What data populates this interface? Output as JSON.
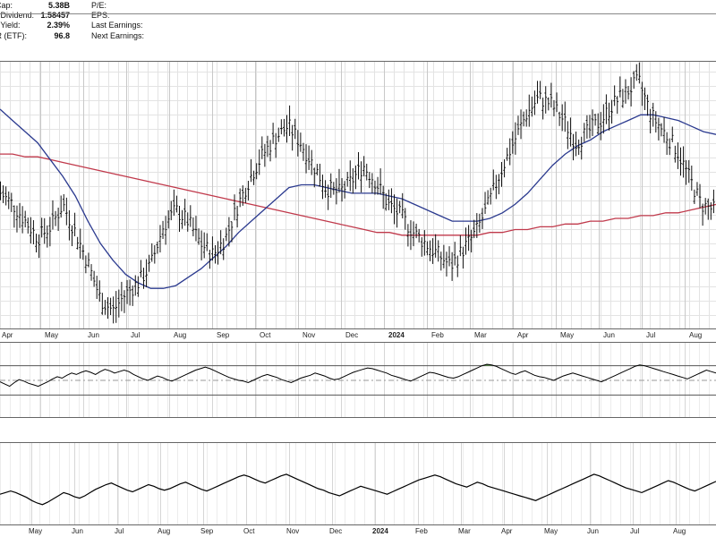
{
  "info_panel": {
    "rows": [
      {
        "label": "t Cap:",
        "value": "5.38B"
      },
      {
        "label": "rd Dividend:",
        "value": "1.58457"
      },
      {
        "label": "rd Yield:",
        "value": "2.39%"
      },
      {
        "label": "TR (ETF):",
        "value": "96.8"
      }
    ],
    "right_labels": [
      "P/E:",
      "EPS:",
      "Last Earnings:",
      "Next Earnings:"
    ]
  },
  "chart_data": [
    {
      "type": "line",
      "panel": "price",
      "x_tick_labels": [
        "Apr",
        "May",
        "Jun",
        "Jul",
        "Aug",
        "Sep",
        "Oct",
        "Nov",
        "Dec",
        "2024",
        "Feb",
        "Mar",
        "Apr",
        "May",
        "Jun",
        "Jul",
        "Aug"
      ],
      "year_label": "2024",
      "series": [
        {
          "key": "price",
          "style": "ohlc-bars",
          "color": "#000000",
          "values": [
            200,
            196,
            190,
            184,
            188,
            196,
            186,
            175,
            162,
            158,
            164,
            168,
            174,
            188,
            194,
            190,
            182,
            178,
            184,
            196,
            206,
            214,
            220,
            224,
            218,
            210,
            202,
            200,
            204,
            210,
            204,
            196,
            192,
            186,
            182,
            178,
            174,
            180,
            186,
            196,
            208,
            218,
            228,
            234,
            232,
            226,
            218,
            222,
            226,
            232,
            236,
            240,
            228,
            222,
            216,
            206,
            196,
            194
          ]
        },
        {
          "key": "ma-short",
          "style": "line",
          "color": "#2b3a8f",
          "values": [
            230,
            226,
            222,
            218,
            212,
            206,
            199,
            190,
            182,
            176,
            171,
            168,
            166,
            166,
            167,
            170,
            173,
            177,
            181,
            186,
            190,
            194,
            198,
            202,
            203,
            203,
            202,
            201,
            200,
            200,
            200,
            199,
            198,
            196,
            194,
            192,
            190,
            190,
            190,
            191,
            193,
            196,
            200,
            205,
            210,
            214,
            217,
            219,
            222,
            224,
            226,
            228,
            228,
            227,
            226,
            224,
            222,
            221
          ]
        },
        {
          "key": "ma-long",
          "style": "line",
          "color": "#c0394b",
          "values": [
            214,
            214,
            213,
            213,
            212,
            211,
            210,
            209,
            208,
            207,
            206,
            205,
            204,
            203,
            202,
            201,
            200,
            199,
            198,
            197,
            196,
            195,
            194,
            193,
            192,
            191,
            190,
            189,
            188,
            187,
            186,
            186,
            185,
            185,
            185,
            185,
            185,
            185,
            185,
            186,
            186,
            187,
            187,
            188,
            188,
            189,
            189,
            190,
            190,
            191,
            191,
            192,
            192,
            193,
            193,
            194,
            195,
            196
          ]
        }
      ],
      "grid": true
    },
    {
      "type": "line",
      "panel": "oscillator-1",
      "series": [
        {
          "key": "osc1",
          "color": "#000000",
          "values": [
            48,
            45,
            42,
            47,
            51,
            49,
            46,
            44,
            42,
            45,
            48,
            52,
            55,
            53,
            57,
            60,
            58,
            61,
            63,
            61,
            58,
            62,
            65,
            63,
            60,
            62,
            64,
            62,
            58,
            55,
            52,
            50,
            53,
            56,
            54,
            51,
            49,
            52,
            55,
            58,
            61,
            64,
            66,
            68,
            66,
            63,
            60,
            57,
            54,
            52,
            50,
            49,
            47,
            50,
            53,
            56,
            58,
            56,
            54,
            51,
            49,
            47,
            50,
            53,
            55,
            57,
            60,
            58,
            56,
            53,
            51,
            52,
            55,
            58,
            61,
            63,
            65,
            67,
            66,
            64,
            62,
            60,
            57,
            55,
            53,
            51,
            49,
            52,
            55,
            58,
            61,
            60,
            58,
            56,
            54,
            53,
            55,
            58,
            61,
            64,
            67,
            70,
            72,
            71,
            69,
            66,
            63,
            60,
            58,
            61,
            63,
            60,
            57,
            55,
            54,
            52,
            50,
            53,
            56,
            58,
            60,
            58,
            56,
            54,
            52,
            50,
            48,
            51,
            54,
            57,
            60,
            63,
            66,
            69,
            71,
            70,
            68,
            66,
            64,
            62,
            60,
            58,
            56,
            54,
            52,
            55,
            58,
            61,
            64,
            62,
            60
          ]
        }
      ],
      "levels": [
        70,
        30
      ],
      "midline": 50,
      "ylim": [
        0,
        100
      ],
      "fill_above_color": "#5a9a4a"
    },
    {
      "type": "line",
      "panel": "oscillator-2",
      "x_tick_labels": [
        "May",
        "Jun",
        "Jul",
        "Aug",
        "Sep",
        "Oct",
        "Nov",
        "Dec",
        "2024",
        "Feb",
        "Mar",
        "Apr",
        "May",
        "Jun",
        "Jul",
        "Aug"
      ],
      "year_label": "2024",
      "series": [
        {
          "key": "osc2",
          "color": "#000000",
          "values": [
            38,
            40,
            42,
            40,
            37,
            34,
            30,
            27,
            25,
            28,
            32,
            36,
            40,
            38,
            35,
            33,
            36,
            40,
            44,
            47,
            50,
            52,
            49,
            46,
            43,
            41,
            44,
            47,
            50,
            48,
            45,
            43,
            45,
            48,
            51,
            53,
            50,
            47,
            44,
            42,
            45,
            48,
            51,
            54,
            57,
            60,
            62,
            60,
            57,
            54,
            52,
            55,
            58,
            61,
            63,
            60,
            57,
            54,
            51,
            48,
            45,
            43,
            40,
            38,
            36,
            39,
            42,
            45,
            48,
            46,
            44,
            42,
            40,
            38,
            41,
            44,
            47,
            50,
            53,
            56,
            58,
            60,
            62,
            60,
            57,
            54,
            51,
            49,
            47,
            50,
            53,
            51,
            48,
            46,
            44,
            42,
            40,
            38,
            36,
            34,
            32,
            30,
            33,
            36,
            39,
            42,
            45,
            48,
            51,
            54,
            57,
            60,
            63,
            61,
            58,
            55,
            52,
            49,
            46,
            44,
            42,
            40,
            43,
            46,
            49,
            52,
            55,
            53,
            50,
            47,
            44,
            42,
            45,
            48,
            51,
            54
          ]
        }
      ],
      "ylim": [
        0,
        100
      ]
    }
  ]
}
